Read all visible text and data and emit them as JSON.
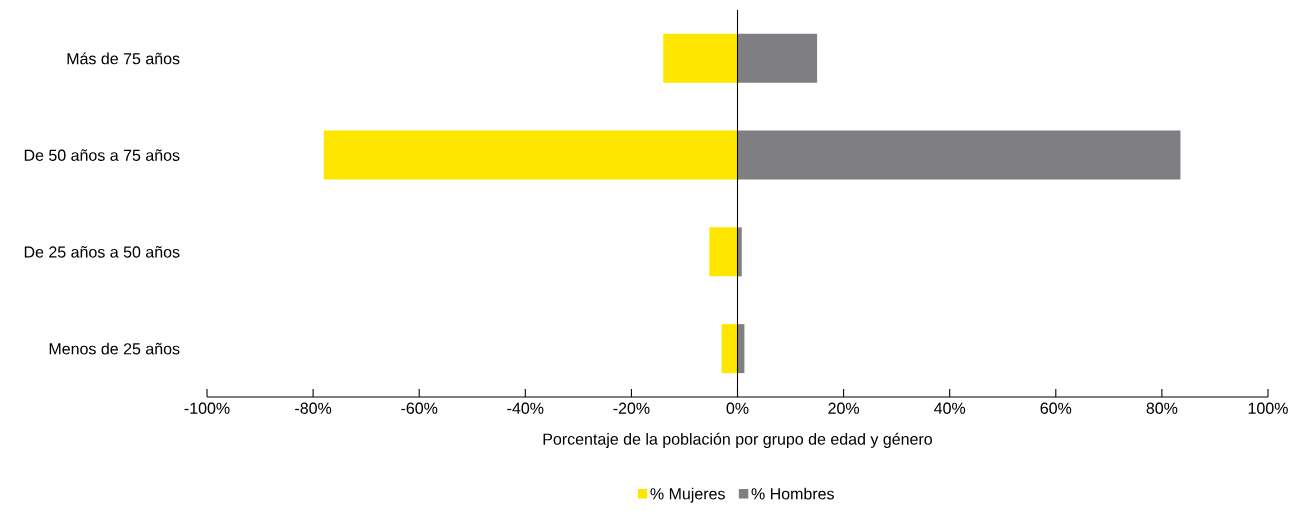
{
  "chart_data": {
    "type": "bar",
    "orientation": "horizontal",
    "stacked": true,
    "xlabel": "Porcentaje de la población por grupo de edad y género",
    "categories": [
      "Más de 75 años",
      "De 50 años a 75 años",
      "De 25 años a 50 años",
      "Menos de 25 años"
    ],
    "series": [
      {
        "name": "% Mujeres",
        "color": "#ffe600",
        "values": [
          -14,
          -78,
          -5.3,
          -3
        ]
      },
      {
        "name": "% Hombres",
        "color": "#7f7e82",
        "values": [
          15,
          83.5,
          0.8,
          1.3
        ]
      }
    ],
    "xlim": [
      -100,
      100
    ],
    "xticks": [
      {
        "value": -100,
        "label": "-100%"
      },
      {
        "value": -80,
        "label": "-80%"
      },
      {
        "value": -60,
        "label": "-60%"
      },
      {
        "value": -40,
        "label": "-40%"
      },
      {
        "value": -20,
        "label": "-20%"
      },
      {
        "value": 0,
        "label": "0%"
      },
      {
        "value": 20,
        "label": "20%"
      },
      {
        "value": 40,
        "label": "40%"
      },
      {
        "value": 60,
        "label": "60%"
      },
      {
        "value": 80,
        "label": "80%"
      },
      {
        "value": 100,
        "label": "100%"
      }
    ],
    "legend": "bottom"
  }
}
